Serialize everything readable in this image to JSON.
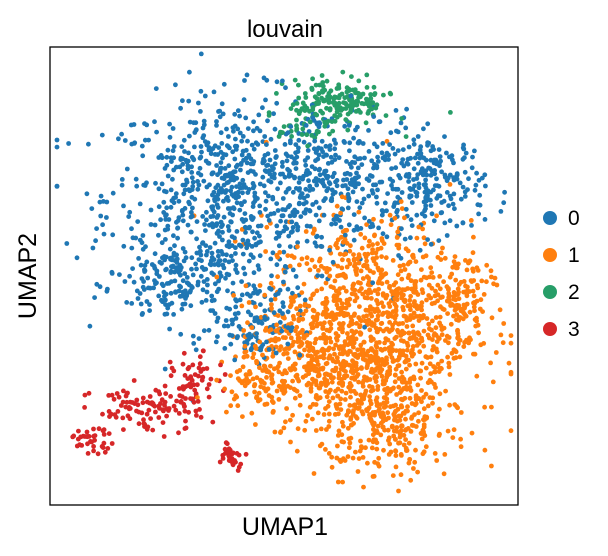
{
  "chart_data": {
    "type": "scatter",
    "title": "louvain",
    "xlabel": "UMAP1",
    "ylabel": "UMAP2",
    "grid": false,
    "ticks": false,
    "legend_position": "right",
    "xlim": [
      0,
      100
    ],
    "ylim": [
      0,
      100
    ],
    "series": [
      {
        "name": "0",
        "color": "#1f77b4",
        "regions": [
          {
            "cx": 38,
            "cy": 67,
            "rx": 26,
            "ry": 22,
            "n": 760
          },
          {
            "cx": 62,
            "cy": 72,
            "rx": 17,
            "ry": 14,
            "n": 260
          },
          {
            "cx": 82,
            "cy": 70,
            "rx": 11,
            "ry": 11,
            "n": 200
          },
          {
            "cx": 28,
            "cy": 48,
            "rx": 14,
            "ry": 9,
            "n": 150
          },
          {
            "cx": 44,
            "cy": 40,
            "rx": 10,
            "ry": 8,
            "n": 110
          }
        ]
      },
      {
        "name": "1",
        "color": "#ff7f0e",
        "regions": [
          {
            "cx": 68,
            "cy": 40,
            "rx": 22,
            "ry": 22,
            "n": 1100
          },
          {
            "cx": 56,
            "cy": 30,
            "rx": 12,
            "ry": 12,
            "n": 200
          },
          {
            "cx": 72,
            "cy": 18,
            "rx": 14,
            "ry": 11,
            "n": 280
          },
          {
            "cx": 44,
            "cy": 28,
            "rx": 6,
            "ry": 9,
            "n": 80
          },
          {
            "cx": 88,
            "cy": 46,
            "rx": 6,
            "ry": 9,
            "n": 90
          }
        ]
      },
      {
        "name": "2",
        "color": "#279e68",
        "regions": [
          {
            "cx": 62,
            "cy": 88,
            "rx": 11,
            "ry": 5,
            "n": 180
          },
          {
            "cx": 54,
            "cy": 82,
            "rx": 5,
            "ry": 3,
            "n": 30
          }
        ]
      },
      {
        "name": "3",
        "color": "#d62728",
        "regions": [
          {
            "cx": 21,
            "cy": 21,
            "rx": 12,
            "ry": 5,
            "n": 110
          },
          {
            "cx": 31,
            "cy": 27,
            "rx": 5,
            "ry": 6,
            "n": 50
          },
          {
            "cx": 9,
            "cy": 14,
            "rx": 5,
            "ry": 2.5,
            "n": 35
          },
          {
            "cx": 39,
            "cy": 11,
            "rx": 3,
            "ry": 3,
            "n": 30
          }
        ]
      }
    ]
  }
}
